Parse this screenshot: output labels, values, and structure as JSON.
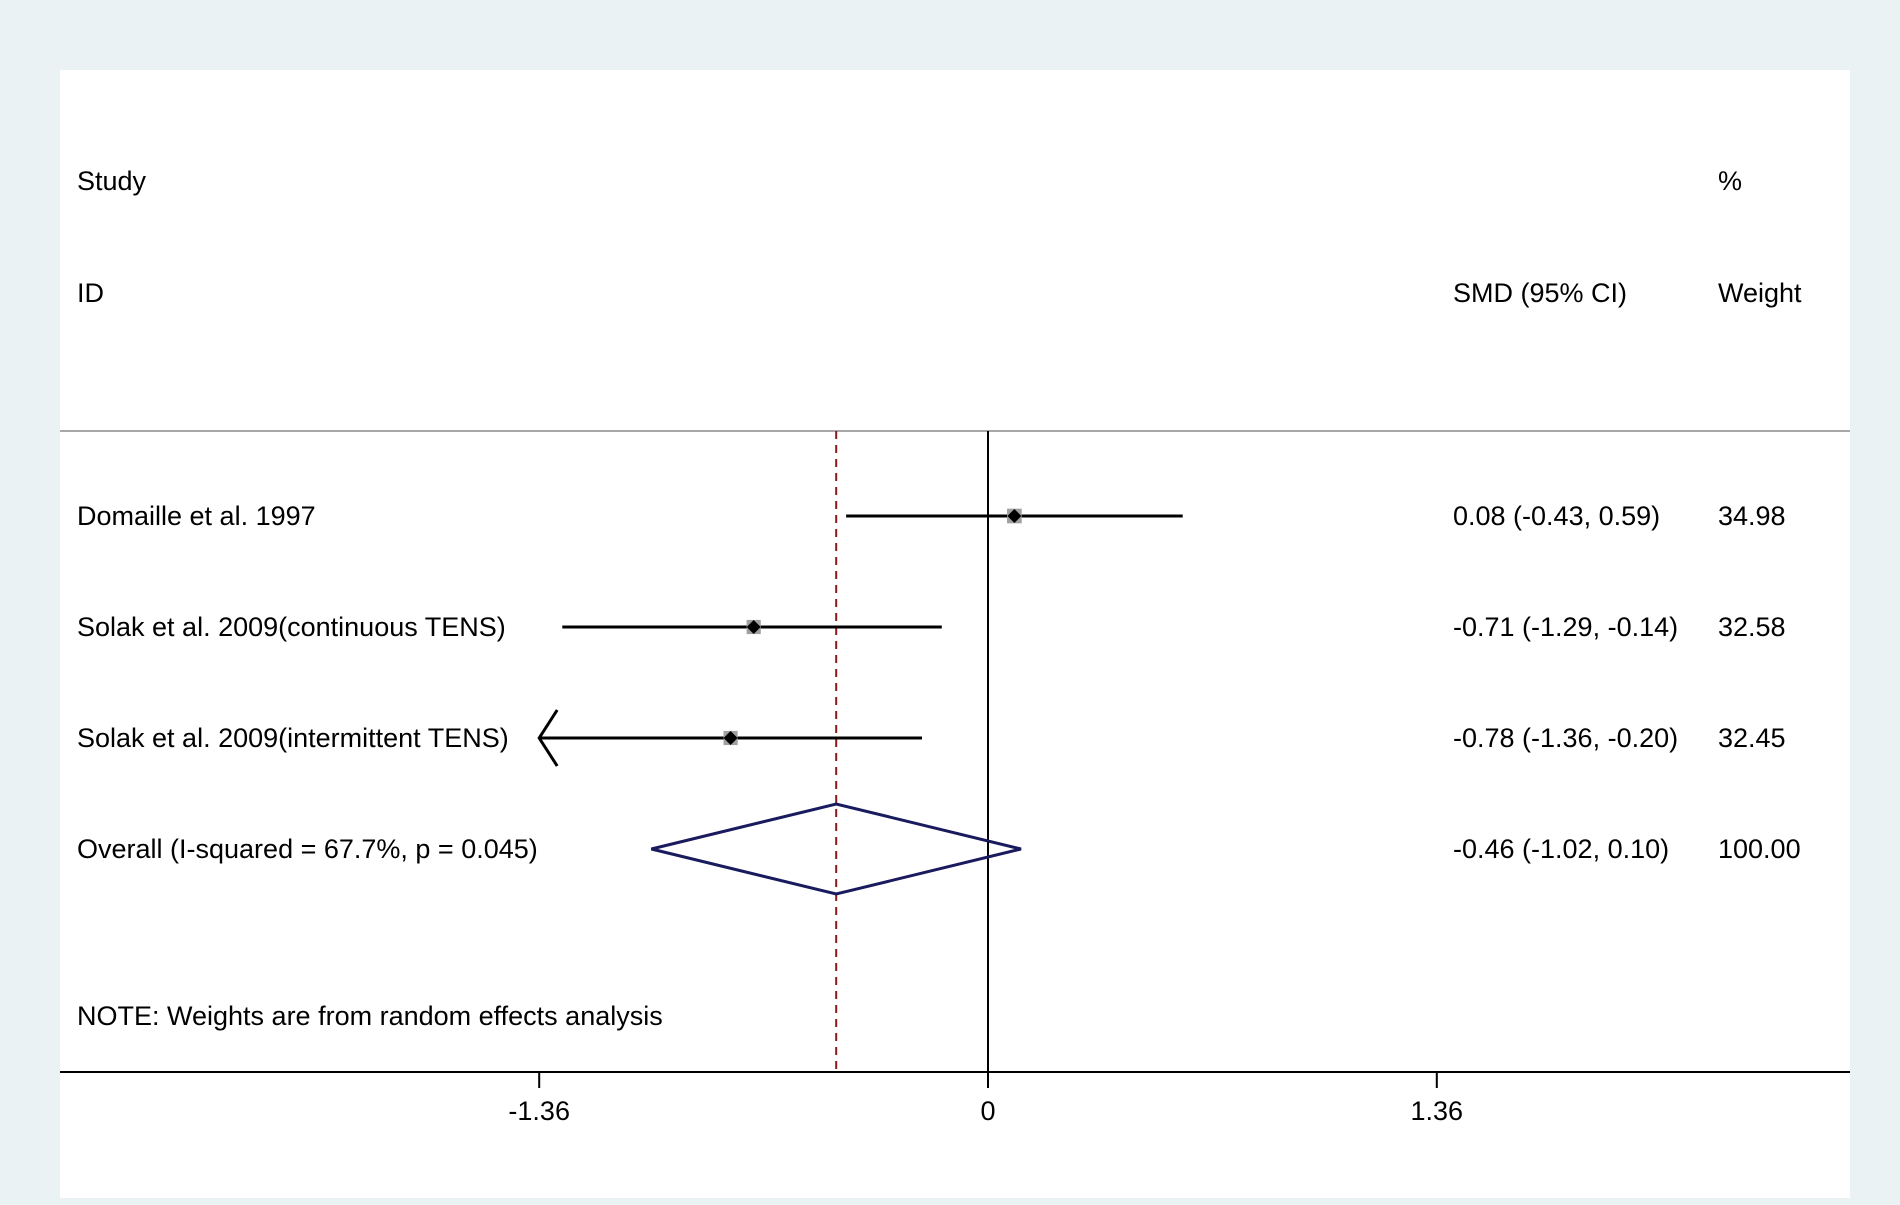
{
  "chart_data": {
    "type": "forest",
    "header": {
      "study_line1": "Study",
      "study_line2": "ID",
      "estimate_label": "SMD (95% CI)",
      "weight_line1": "%",
      "weight_line2": "Weight"
    },
    "studies": [
      {
        "label": "Domaille et al. 1997",
        "smd": 0.08,
        "ci_low": -0.43,
        "ci_high": 0.59,
        "weight": 34.98,
        "est_text": "0.08 (-0.43, 0.59)",
        "weight_text": "34.98"
      },
      {
        "label": "Solak et al. 2009(continuous TENS)",
        "smd": -0.71,
        "ci_low": -1.29,
        "ci_high": -0.14,
        "weight": 32.58,
        "est_text": "-0.71 (-1.29, -0.14)",
        "weight_text": "32.58"
      },
      {
        "label": "Solak et al. 2009(intermittent TENS)",
        "smd": -0.78,
        "ci_low": -1.36,
        "ci_high": -0.2,
        "weight": 32.45,
        "est_text": "-0.78 (-1.36, -0.20)",
        "weight_text": "32.45",
        "arrow_left": true
      }
    ],
    "overall": {
      "label": "Overall  (I-squared = 67.7%, p = 0.045)",
      "smd": -0.46,
      "ci_low": -1.02,
      "ci_high": 0.1,
      "est_text": "-0.46 (-1.02, 0.10)",
      "weight_text": "100.00"
    },
    "note": "NOTE: Weights are from random effects analysis",
    "xlim": [
      -2.08,
      1.94
    ],
    "xticks": [
      -1.36,
      0,
      1.36
    ],
    "xtick_labels": [
      "-1.36",
      "0",
      "1.36"
    ],
    "null_line": 0,
    "colors": {
      "diamond": "#1a1a5e",
      "overall_line": "#8b1a1a",
      "box": "#a0a0a0",
      "background": "#eaf2f3",
      "panel": "#ffffff"
    }
  }
}
